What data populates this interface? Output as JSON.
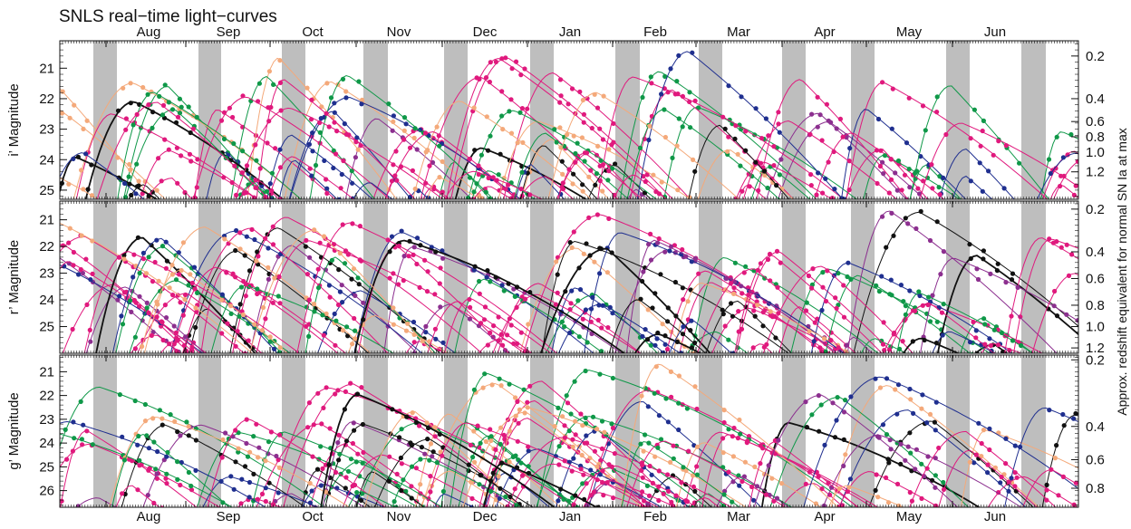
{
  "chart_data": {
    "type": "line",
    "title": "SNLS real−time light−curves",
    "months": [
      "Aug",
      "Sep",
      "Oct",
      "Nov",
      "Dec",
      "Jan",
      "Feb",
      "Mar",
      "Apr",
      "May",
      "Jun"
    ],
    "right_axis_label": "Approx. redshift equivalent for normal SN Ia at max",
    "series_colors": [
      "#1f2f8f",
      "#e0197d",
      "#f4a97a",
      "#0f9848",
      "#111111",
      "#8c2f8f"
    ],
    "panels": [
      {
        "ylabel": "i’ Magnitude",
        "yticks": [
          "21",
          "22",
          "23",
          "24",
          "25"
        ],
        "ylim": [
          25.3,
          20.1
        ],
        "right_ticks": [
          "0.2",
          "0.4",
          "0.6",
          "0.8",
          "1.0",
          "1.2"
        ],
        "right_mags": [
          20.6,
          22.0,
          22.75,
          23.25,
          23.75,
          24.4
        ]
      },
      {
        "ylabel": "r’ Magnitude",
        "yticks": [
          "21",
          "22",
          "23",
          "24",
          "25"
        ],
        "ylim": [
          26.0,
          20.3
        ],
        "right_ticks": [
          "0.2",
          "0.4",
          "0.6",
          "0.8",
          "1.0",
          "1.2"
        ],
        "right_mags": [
          20.6,
          22.2,
          23.2,
          24.2,
          25.0,
          25.8
        ]
      },
      {
        "ylabel": "g’ Magnitude",
        "yticks": [
          "21",
          "22",
          "23",
          "24",
          "25",
          "26"
        ],
        "ylim": [
          26.7,
          20.3
        ],
        "right_ticks": [
          "0.2",
          "0.4",
          "0.6",
          "0.8"
        ],
        "right_mags": [
          20.5,
          23.3,
          24.7,
          25.9
        ]
      }
    ]
  }
}
